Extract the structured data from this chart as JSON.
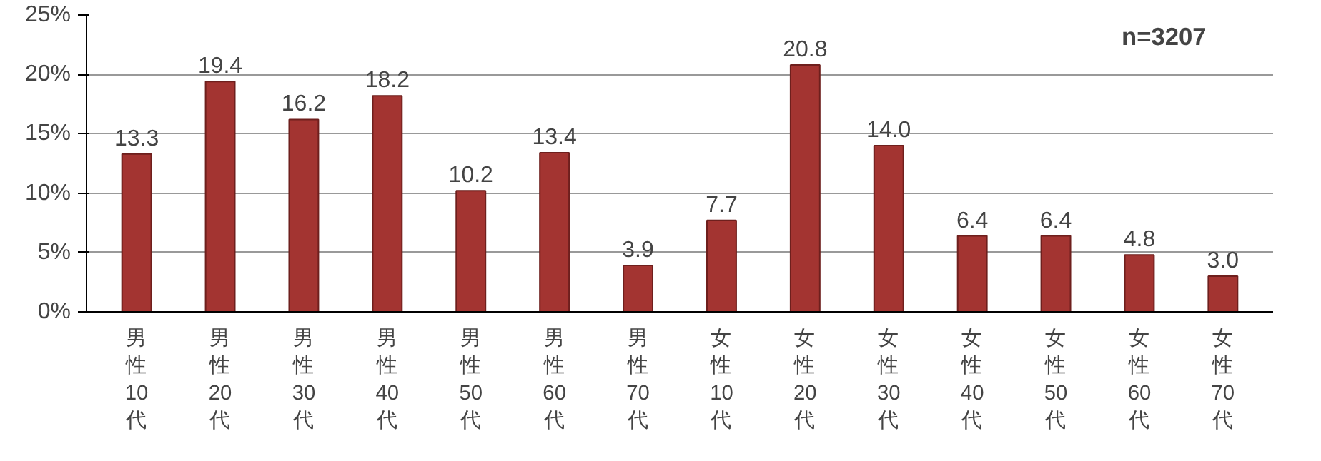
{
  "chart_data": {
    "type": "bar",
    "categories": [
      "男性10代",
      "男性20代",
      "男性30代",
      "男性40代",
      "男性50代",
      "男性60代",
      "男性70代",
      "女性10代",
      "女性20代",
      "女性30代",
      "女性40代",
      "女性50代",
      "女性60代",
      "女性70代"
    ],
    "values": [
      13.3,
      19.4,
      16.2,
      18.2,
      10.2,
      13.4,
      3.9,
      7.7,
      20.8,
      14.0,
      6.4,
      6.4,
      4.8,
      3.0
    ],
    "color": "#a33431",
    "value_labels": [
      "13.3",
      "19.4",
      "16.2",
      "18.2",
      "10.2",
      "13.4",
      "3.9",
      "7.7",
      "20.8",
      "14.0",
      "6.4",
      "6.4",
      "4.8",
      "3.0"
    ],
    "ylim": [
      0,
      25
    ],
    "yticks": [
      {
        "value": 0,
        "label": "0%"
      },
      {
        "value": 5,
        "label": "5%"
      },
      {
        "value": 10,
        "label": "10%"
      },
      {
        "value": 15,
        "label": "15%"
      },
      {
        "value": 20,
        "label": "20%"
      },
      {
        "value": 25,
        "label": "25%"
      }
    ],
    "grid": "y",
    "annotations": [
      "n=3207"
    ]
  }
}
